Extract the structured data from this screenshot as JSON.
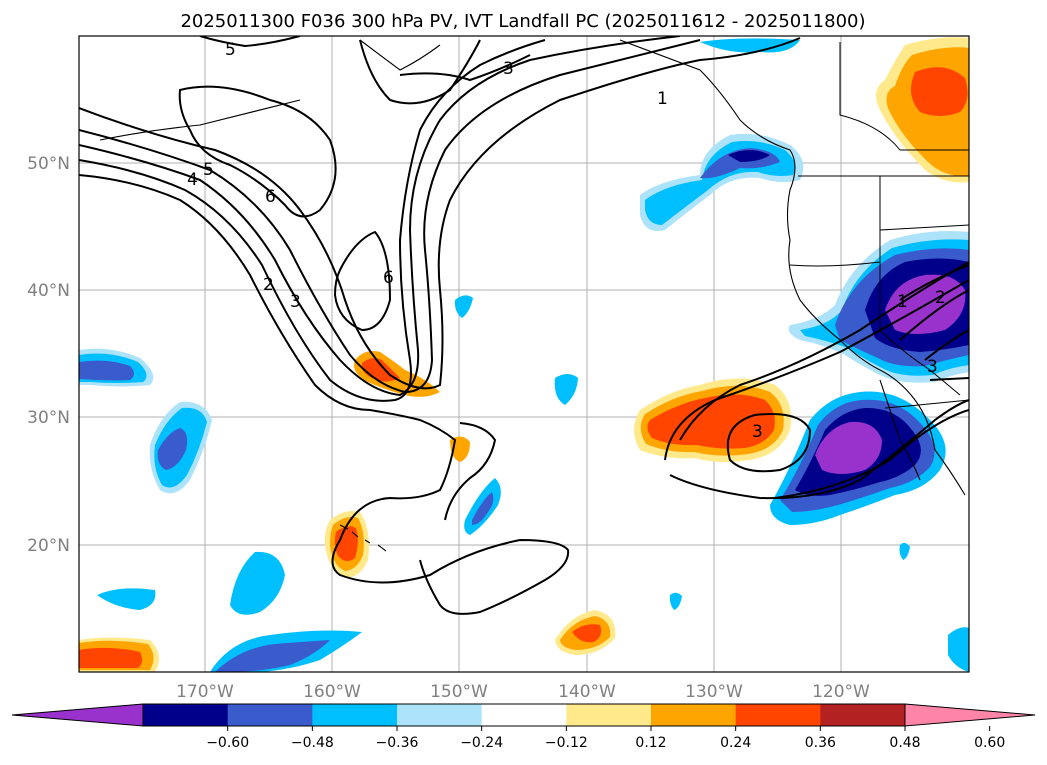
{
  "title": "2025011300 F036 300 hPa PV, IVT Landfall PC (2025011612 - 2025011800)",
  "map": {
    "lon_labels": [
      "170°W",
      "160°W",
      "150°W",
      "140°W",
      "130°W",
      "120°W"
    ],
    "lat_labels": [
      "50°N",
      "40°N",
      "30°N",
      "20°N"
    ],
    "contour_labels": [
      "5",
      "3",
      "1",
      "5",
      "4",
      "6",
      "2",
      "3",
      "6",
      "3",
      "1",
      "2",
      "3"
    ]
  },
  "colorbar": {
    "ticks": [
      "−0.60",
      "−0.48",
      "−0.36",
      "−0.24",
      "−0.12",
      "0.12",
      "0.24",
      "0.36",
      "0.48",
      "0.60"
    ],
    "colors": [
      "#9932CC",
      "#00008B",
      "#3A5BCC",
      "#00BFFF",
      "#ADE3FA",
      "#FFFFFF",
      "#FFE98A",
      "#FFA500",
      "#FF4500",
      "#B22222",
      "#FF85A8"
    ]
  }
}
